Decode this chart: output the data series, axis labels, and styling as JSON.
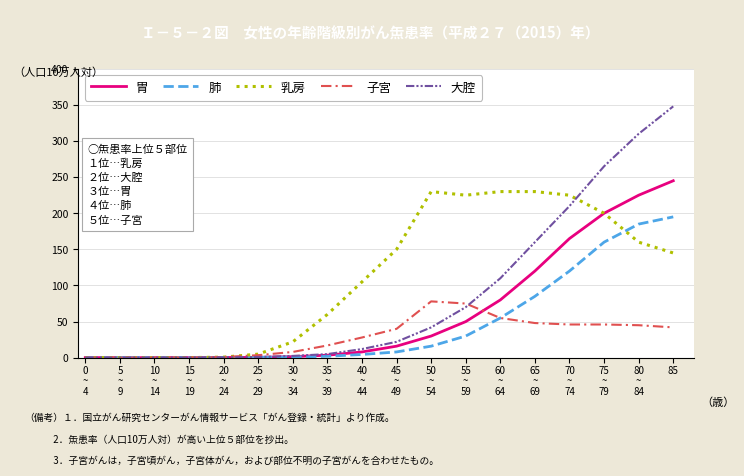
{
  "title": "Ｉ－５－２図　女性の年齢階級別がん缹患率（平成２７（2015）年）",
  "ylabel": "（人口10万人対）",
  "background_color": "#ede8d8",
  "plot_background": "#ffffff",
  "header_color": "#3ab0c8",
  "age_ticks": [
    0,
    5,
    10,
    15,
    20,
    25,
    30,
    35,
    40,
    45,
    50,
    55,
    60,
    65,
    70,
    75,
    80,
    85
  ],
  "ylim": [
    0,
    400
  ],
  "yticks": [
    0,
    50,
    100,
    150,
    200,
    250,
    300,
    350,
    400
  ],
  "series": {
    "胃": {
      "color": "#e8007f",
      "linestyle": "solid",
      "linewidth": 2.0,
      "values": [
        0.2,
        0.1,
        0.1,
        0.2,
        0.3,
        0.5,
        1.5,
        3.5,
        8.0,
        16.0,
        30.0,
        50.0,
        80.0,
        120.0,
        165.0,
        200.0,
        225.0,
        245.0
      ]
    },
    "肺": {
      "color": "#4da6e8",
      "linestyle": "dashed",
      "linewidth": 2.0,
      "values": [
        0.3,
        0.2,
        0.2,
        0.2,
        0.3,
        0.5,
        1.0,
        2.0,
        4.5,
        8.0,
        16.0,
        30.0,
        55.0,
        85.0,
        120.0,
        160.0,
        185.0,
        195.0
      ]
    },
    "乳房": {
      "color": "#b0c000",
      "linestyle": "dotted",
      "linewidth": 2.2,
      "values": [
        0.1,
        0.1,
        0.1,
        0.2,
        0.8,
        5.0,
        22.0,
        60.0,
        105.0,
        150.0,
        230.0,
        225.0,
        230.0,
        230.0,
        225.0,
        200.0,
        160.0,
        145.0
      ]
    },
    "子宮": {
      "color": "#e05050",
      "linewidth": 1.5,
      "values": [
        0.1,
        0.1,
        0.1,
        0.3,
        1.0,
        3.5,
        8.0,
        17.0,
        28.0,
        40.0,
        78.0,
        75.0,
        55.0,
        48.0,
        46.0,
        46.0,
        45.0,
        42.0
      ]
    },
    "大腔": {
      "color": "#7050a0",
      "linewidth": 1.5,
      "values": [
        0.3,
        0.2,
        0.2,
        0.3,
        0.5,
        1.0,
        2.5,
        5.0,
        12.0,
        22.0,
        42.0,
        70.0,
        110.0,
        160.0,
        210.0,
        265.0,
        310.0,
        348.0
      ]
    }
  },
  "annotation_title": "○缹患率上位５部位",
  "annotation_lines": [
    "１位…乳房",
    "２位…大腔",
    "３位…胃",
    "４位…肺",
    "５位…子宮"
  ],
  "footnotes": [
    "（備考）１．国立がん研究センターがん情報サービス「がん登録・統計」より作成。",
    "　　　2．缹患率（人口10万人対）が高い上位５部位を抄出。",
    "　　　3．子宮がんは，子宮頃がん，子宮体がん，および部位不明の子宮がんを合わせたもの。"
  ]
}
